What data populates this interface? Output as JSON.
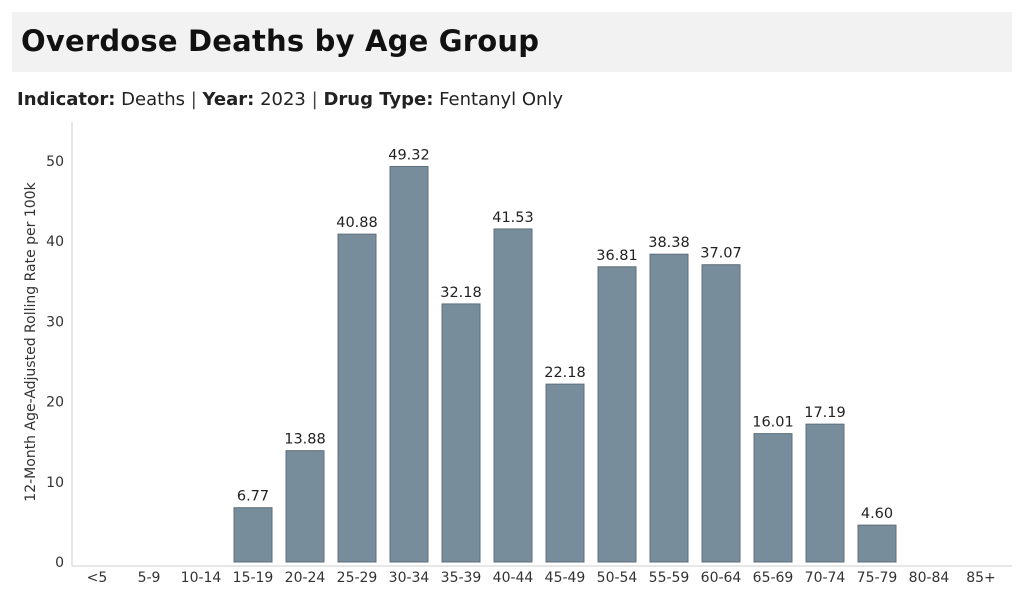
{
  "header": {
    "title": "Overdose Deaths by Age Group"
  },
  "filters": {
    "indicator_label": "Indicator:",
    "indicator_value": "Deaths",
    "year_label": "Year:",
    "year_value": "2023",
    "drug_label": "Drug Type:",
    "drug_value": "Fentanyl Only",
    "separator": "|"
  },
  "colors": {
    "bar": "#778d9c",
    "bar_stroke": "#5f6f7b",
    "title_bg": "#f2f2f2"
  },
  "chart_data": {
    "type": "bar",
    "title": "Overdose Deaths by Age Group",
    "xlabel": "",
    "ylabel": "12-Month Age-Adjusted Rolling Rate per 100k",
    "ylim": [
      0,
      53
    ],
    "yticks": [
      0,
      10,
      20,
      30,
      40,
      50
    ],
    "grid": false,
    "categories": [
      "<5",
      "5-9",
      "10-14",
      "15-19",
      "20-24",
      "25-29",
      "30-34",
      "35-39",
      "40-44",
      "45-49",
      "50-54",
      "55-59",
      "60-64",
      "65-69",
      "70-74",
      "75-79",
      "80-84",
      "85+"
    ],
    "values": [
      null,
      null,
      null,
      6.77,
      13.88,
      40.88,
      49.32,
      32.18,
      41.53,
      22.18,
      36.81,
      38.38,
      37.07,
      16.01,
      17.19,
      4.6,
      null,
      null
    ],
    "data_labels": [
      "",
      "",
      "",
      "6.77",
      "13.88",
      "40.88",
      "49.32",
      "32.18",
      "41.53",
      "22.18",
      "36.81",
      "38.38",
      "37.07",
      "16.01",
      "17.19",
      "4.60",
      "",
      ""
    ]
  }
}
